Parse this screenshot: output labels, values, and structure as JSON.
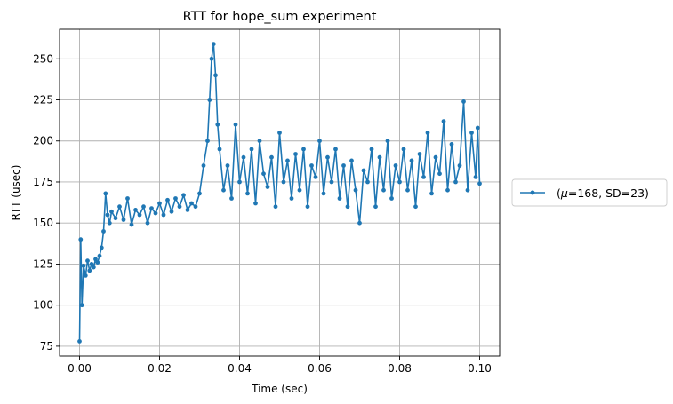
{
  "chart_data": {
    "type": "line",
    "title": "RTT for hope_sum experiment",
    "xlabel": "Time (sec)",
    "ylabel": "RTT (usec)",
    "xlim": [
      -0.005,
      0.105
    ],
    "ylim": [
      69,
      268
    ],
    "grid": true,
    "legend_placement": "outside-right",
    "x_ticks": [
      0.0,
      0.02,
      0.04,
      0.06,
      0.08,
      0.1
    ],
    "x_tick_labels": [
      "0.00",
      "0.02",
      "0.04",
      "0.06",
      "0.08",
      "0.10"
    ],
    "y_ticks": [
      75,
      100,
      125,
      150,
      175,
      200,
      225,
      250
    ],
    "y_tick_labels": [
      "75",
      "100",
      "125",
      "150",
      "175",
      "200",
      "225",
      "250"
    ],
    "series": [
      {
        "name": "(μ=168, SD=23)",
        "legend_label": {
          "prefix": "(",
          "mu": "μ",
          "suffix": "=168, SD=23)"
        },
        "color": "#1f77b4",
        "marker": "circle",
        "x_range": [
          0.0,
          0.1
        ],
        "x": [
          0.0,
          0.0003,
          0.0006,
          0.001,
          0.0015,
          0.002,
          0.0025,
          0.003,
          0.0035,
          0.004,
          0.0045,
          0.005,
          0.0055,
          0.006,
          0.0065,
          0.007,
          0.0075,
          0.008,
          0.009,
          0.01,
          0.011,
          0.012,
          0.013,
          0.014,
          0.015,
          0.016,
          0.017,
          0.018,
          0.019,
          0.02,
          0.021,
          0.022,
          0.023,
          0.024,
          0.025,
          0.026,
          0.027,
          0.028,
          0.029,
          0.03,
          0.031,
          0.032,
          0.0325,
          0.033,
          0.0335,
          0.034,
          0.0345,
          0.035,
          0.036,
          0.037,
          0.038,
          0.039,
          0.04,
          0.041,
          0.042,
          0.043,
          0.044,
          0.045,
          0.046,
          0.047,
          0.048,
          0.049,
          0.05,
          0.051,
          0.052,
          0.053,
          0.054,
          0.055,
          0.056,
          0.057,
          0.058,
          0.059,
          0.06,
          0.061,
          0.062,
          0.063,
          0.064,
          0.065,
          0.066,
          0.067,
          0.068,
          0.069,
          0.07,
          0.071,
          0.072,
          0.073,
          0.074,
          0.075,
          0.076,
          0.077,
          0.078,
          0.079,
          0.08,
          0.081,
          0.082,
          0.083,
          0.084,
          0.085,
          0.086,
          0.087,
          0.088,
          0.089,
          0.09,
          0.091,
          0.092,
          0.093,
          0.094,
          0.095,
          0.096,
          0.097,
          0.098,
          0.099,
          0.0995,
          0.1
        ],
        "y": [
          78,
          140,
          100,
          124,
          118,
          127,
          121,
          125,
          123,
          128,
          126,
          130,
          135,
          145,
          168,
          155,
          150,
          157,
          153,
          160,
          152,
          165,
          149,
          158,
          155,
          160,
          150,
          159,
          156,
          162,
          155,
          164,
          157,
          165,
          160,
          167,
          158,
          162,
          160,
          168,
          185,
          200,
          225,
          250,
          259,
          240,
          210,
          195,
          170,
          185,
          165,
          210,
          175,
          190,
          168,
          195,
          162,
          200,
          180,
          172,
          190,
          160,
          205,
          175,
          188,
          165,
          192,
          170,
          195,
          160,
          185,
          178,
          200,
          168,
          190,
          175,
          195,
          165,
          185,
          160,
          188,
          170,
          150,
          182,
          175,
          195,
          160,
          190,
          170,
          200,
          165,
          185,
          175,
          195,
          170,
          188,
          160,
          192,
          178,
          205,
          168,
          190,
          180,
          212,
          170,
          198,
          175,
          185,
          224,
          170,
          205,
          178,
          208,
          174
        ]
      }
    ]
  }
}
